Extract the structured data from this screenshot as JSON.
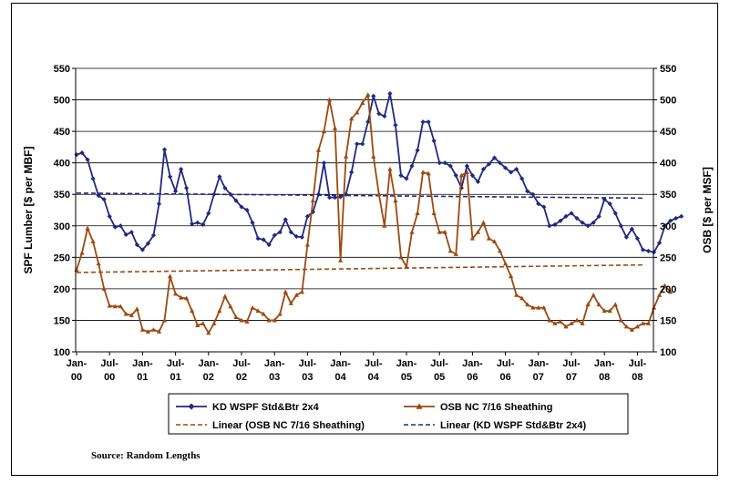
{
  "chart_data": {
    "type": "line",
    "title": "",
    "ylabel_left": "SPF Lumber [$ per MBF]",
    "ylabel_right": "OSB [$ per MSF]",
    "ylim": [
      100,
      550
    ],
    "yticks": [
      100,
      150,
      200,
      250,
      300,
      350,
      400,
      450,
      500,
      550
    ],
    "x_tick_labels": [
      [
        "Jan-",
        "00"
      ],
      [
        "Jul-",
        "00"
      ],
      [
        "Jan-",
        "01"
      ],
      [
        "Jul-",
        "01"
      ],
      [
        "Jan-",
        "02"
      ],
      [
        "Jul-",
        "02"
      ],
      [
        "Jan-",
        "03"
      ],
      [
        "Jul-",
        "03"
      ],
      [
        "Jan-",
        "04"
      ],
      [
        "Jul-",
        "04"
      ],
      [
        "Jan-",
        "05"
      ],
      [
        "Jul-",
        "05"
      ],
      [
        "Jan-",
        "06"
      ],
      [
        "Jul-",
        "06"
      ],
      [
        "Jan-",
        "07"
      ],
      [
        "Jul-",
        "07"
      ],
      [
        "Jan-",
        "08"
      ],
      [
        "Jul-",
        "08"
      ]
    ],
    "x_start": "Jan 2000",
    "x_interval": "month",
    "grid": "horizontal",
    "legend_position": "bottom",
    "series": [
      {
        "name": "KD WSPF Std&Btr 2x4",
        "color": "#1f2a80",
        "marker": "diamond",
        "axis": "left",
        "values": [
          413,
          416,
          405,
          375,
          348,
          342,
          315,
          298,
          300,
          286,
          290,
          270,
          262,
          272,
          285,
          335,
          421,
          378,
          355,
          390,
          360,
          303,
          305,
          302,
          320,
          350,
          378,
          360,
          350,
          340,
          330,
          325,
          305,
          280,
          278,
          270,
          285,
          290,
          310,
          290,
          283,
          282,
          315,
          322,
          350,
          400,
          345,
          345,
          346,
          350,
          385,
          430,
          430,
          465,
          506,
          478,
          474,
          510,
          460,
          380,
          375,
          395,
          420,
          465,
          465,
          435,
          400,
          400,
          395,
          380,
          360,
          395,
          380,
          370,
          390,
          398,
          408,
          400,
          392,
          385,
          390,
          375,
          355,
          350,
          335,
          330,
          300,
          302,
          308,
          315,
          320,
          312,
          305,
          300,
          305,
          315,
          342,
          335,
          320,
          300,
          282,
          295,
          280,
          262,
          260,
          258,
          273,
          300,
          308,
          312,
          315
        ],
        "values_note": "monthly from Jan 2000"
      },
      {
        "name": "OSB NC 7/16 Sheathing",
        "color": "#9c4a10",
        "marker": "triangle",
        "axis": "right",
        "values": [
          230,
          257,
          296,
          275,
          240,
          200,
          173,
          172,
          172,
          160,
          158,
          168,
          135,
          132,
          135,
          132,
          150,
          220,
          192,
          186,
          185,
          165,
          142,
          145,
          130,
          145,
          165,
          188,
          172,
          155,
          150,
          148,
          170,
          165,
          160,
          150,
          150,
          160,
          195,
          177,
          190,
          195,
          270,
          340,
          420,
          450,
          500,
          455,
          245,
          410,
          470,
          480,
          495,
          508,
          410,
          350,
          300,
          390,
          340,
          250,
          235,
          290,
          320,
          385,
          383,
          320,
          290,
          290,
          260,
          255,
          380,
          385,
          280,
          290,
          305,
          280,
          275,
          260,
          240,
          220,
          190,
          185,
          175,
          170,
          170,
          170,
          150,
          145,
          148,
          140,
          145,
          150,
          145,
          175,
          190,
          175,
          165,
          165,
          175,
          150,
          140,
          135,
          140,
          145,
          145,
          170,
          190,
          205,
          195
        ],
        "values_note": "monthly from Jan 2000"
      },
      {
        "name": "Linear (OSB NC 7/16 Sheathing)",
        "color": "#9c4a10",
        "style": "dashed",
        "axis": "right",
        "values": [
          226,
          238
        ],
        "values_note": "trend line start (Jan 2000) and end (Aug 2008)"
      },
      {
        "name": "Linear (KD WSPF Std&Btr 2x4)",
        "color": "#1f2a80",
        "style": "dashed",
        "axis": "left",
        "values": [
          352,
          344
        ],
        "values_note": "trend line start (Jan 2000) and end (Aug 2008)"
      }
    ],
    "legend": [
      "KD WSPF Std&Btr 2x4",
      "OSB NC 7/16 Sheathing",
      "Linear (OSB NC 7/16 Sheathing)",
      "Linear (KD WSPF Std&Btr 2x4)"
    ]
  },
  "source": "Source: Random Lengths"
}
